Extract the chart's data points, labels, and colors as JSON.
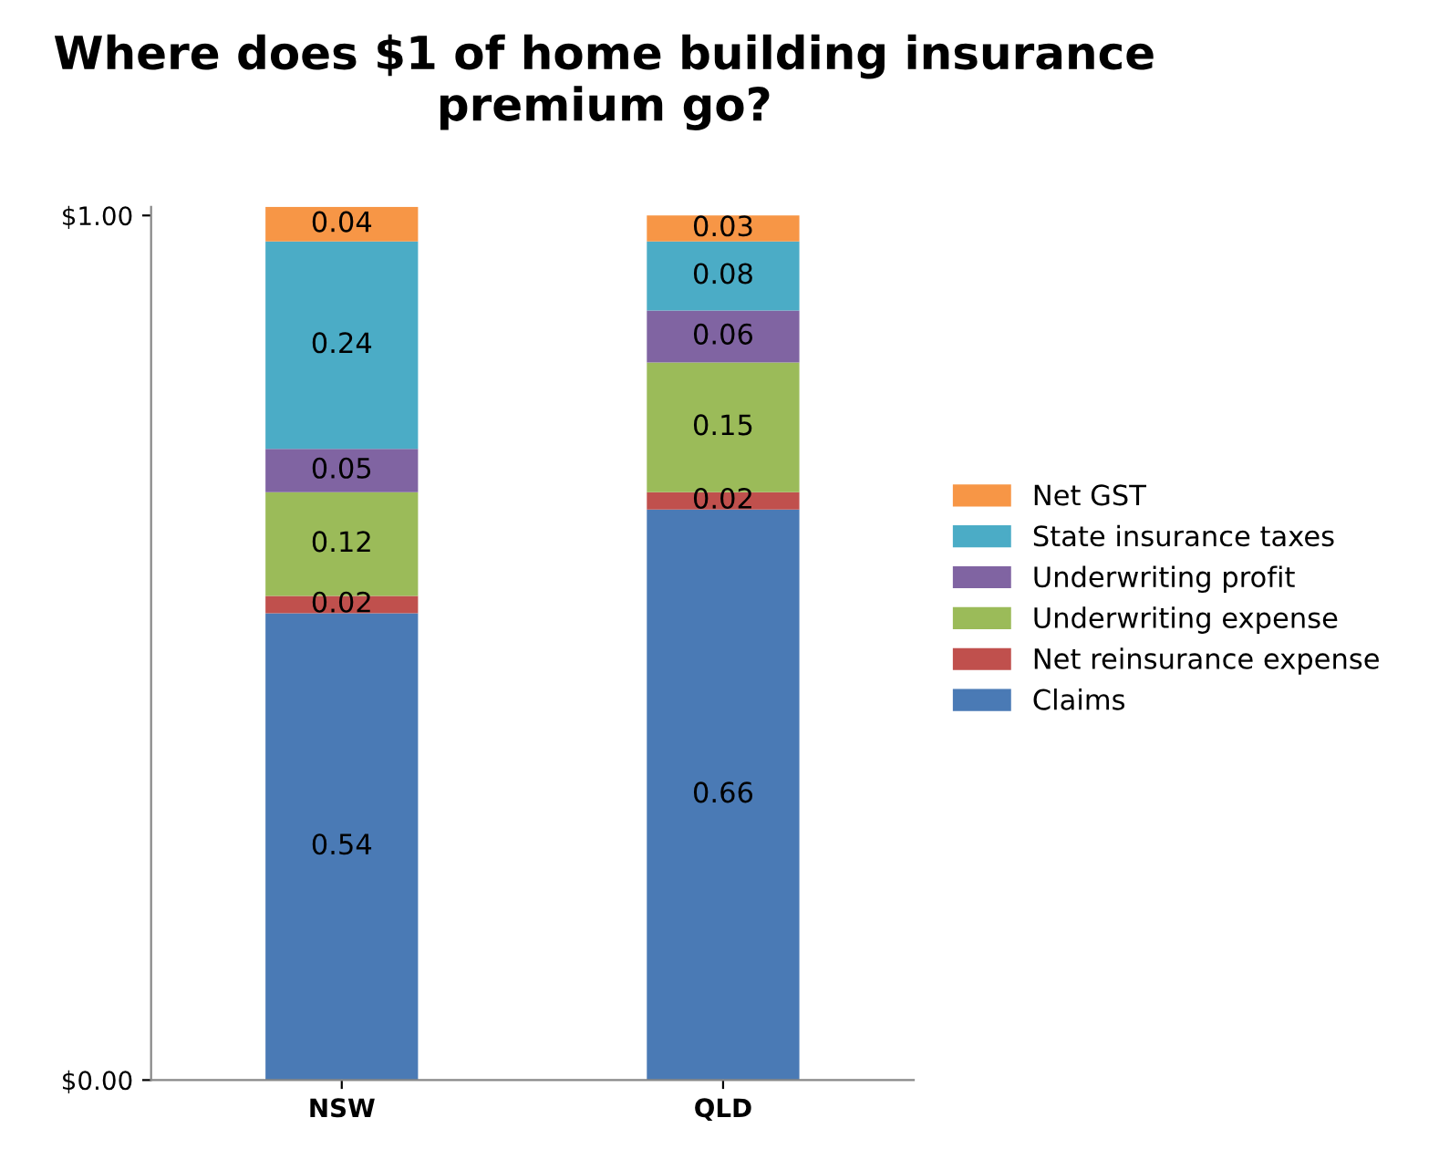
{
  "chart_data": {
    "type": "bar",
    "title": "Where does $1 of home building insurance premium go?",
    "categories": [
      "NSW",
      "QLD"
    ],
    "stacked": true,
    "data_labels": true,
    "legend": "right",
    "grid": false,
    "ylim": [
      0,
      1.01
    ],
    "yticks": [
      {
        "value": 0,
        "label": "$0.00"
      },
      {
        "value": 1,
        "label": "$1.00"
      }
    ],
    "series": [
      {
        "name": "Claims",
        "color": "#4a7ab5",
        "values": [
          0.54,
          0.66
        ]
      },
      {
        "name": "Net reinsurance expense",
        "color": "#c0504d",
        "values": [
          0.02,
          0.02
        ]
      },
      {
        "name": "Underwriting expense",
        "color": "#9bbb59",
        "values": [
          0.12,
          0.15
        ]
      },
      {
        "name": "Underwriting profit",
        "color": "#8064a2",
        "values": [
          0.05,
          0.06
        ]
      },
      {
        "name": "State insurance taxes",
        "color": "#4bacc6",
        "values": [
          0.24,
          0.08
        ]
      },
      {
        "name": "Net GST",
        "color": "#f79646",
        "values": [
          0.04,
          0.03
        ]
      }
    ]
  }
}
